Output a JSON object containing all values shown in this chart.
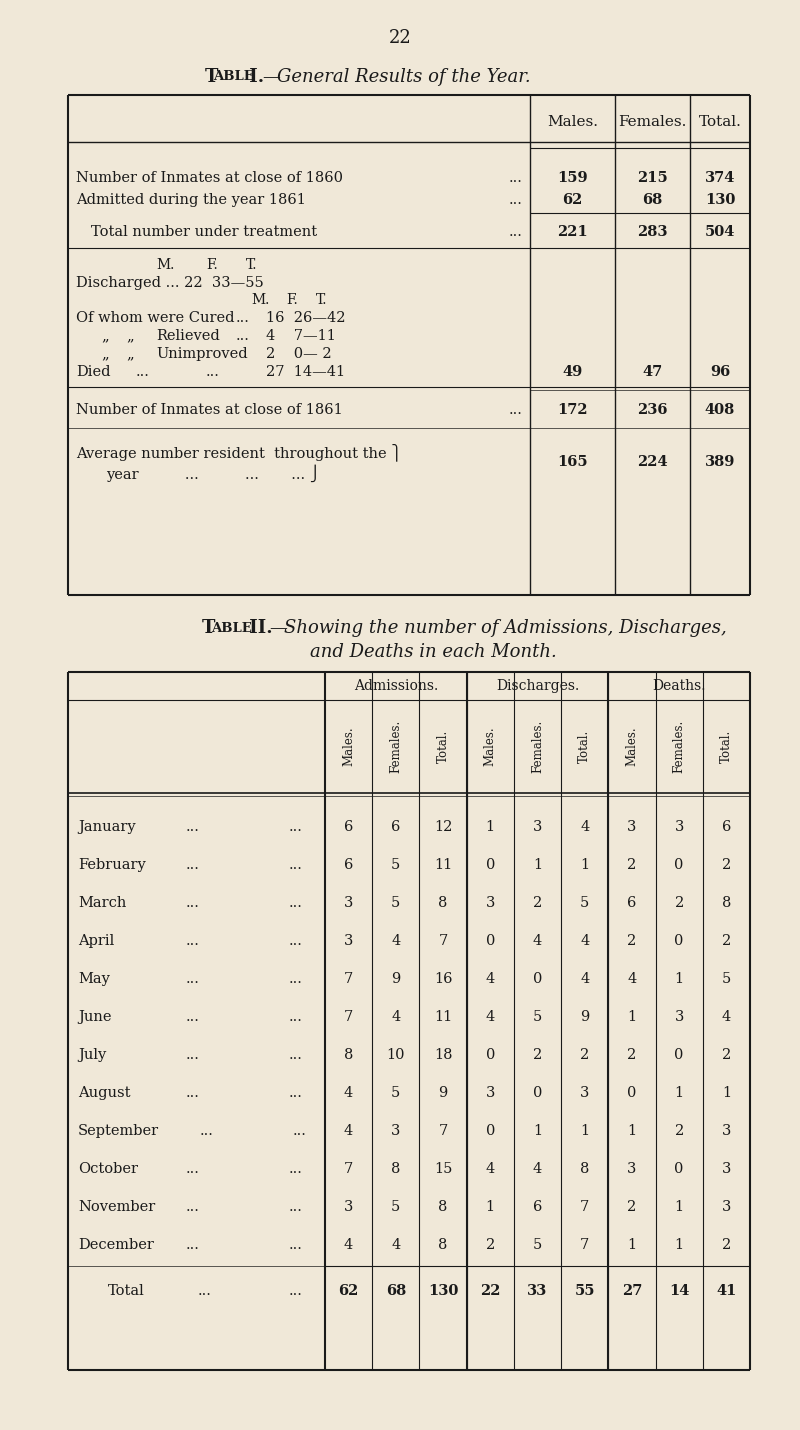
{
  "bg_color": "#f0e8d8",
  "page_number": "22",
  "table1_headers": [
    "Males.",
    "Females.",
    "Total."
  ],
  "table2_group_headers": [
    "Admissions.",
    "Discharges.",
    "Deaths."
  ],
  "table2_sub_headers": [
    "Males.",
    "Females.",
    "Total.",
    "Males.",
    "Females.",
    "Total.",
    "Males.",
    "Females.",
    "Total."
  ],
  "table2_months": [
    "January",
    "February",
    "March",
    "April",
    "May",
    "June",
    "July",
    "August",
    "September",
    "October",
    "November",
    "December"
  ],
  "table2_data": [
    [
      6,
      6,
      12,
      1,
      3,
      4,
      3,
      3,
      6
    ],
    [
      6,
      5,
      11,
      0,
      1,
      1,
      2,
      0,
      2
    ],
    [
      3,
      5,
      8,
      3,
      2,
      5,
      6,
      2,
      8
    ],
    [
      3,
      4,
      7,
      0,
      4,
      4,
      2,
      0,
      2
    ],
    [
      7,
      9,
      16,
      4,
      0,
      4,
      4,
      1,
      5
    ],
    [
      7,
      4,
      11,
      4,
      5,
      9,
      1,
      3,
      4
    ],
    [
      8,
      10,
      18,
      0,
      2,
      2,
      2,
      0,
      2
    ],
    [
      4,
      5,
      9,
      3,
      0,
      3,
      0,
      1,
      1
    ],
    [
      4,
      3,
      7,
      0,
      1,
      1,
      1,
      2,
      3
    ],
    [
      7,
      8,
      15,
      4,
      4,
      8,
      3,
      0,
      3
    ],
    [
      3,
      5,
      8,
      1,
      6,
      7,
      2,
      1,
      3
    ],
    [
      4,
      4,
      8,
      2,
      5,
      7,
      1,
      1,
      2
    ]
  ],
  "table2_totals": [
    62,
    68,
    130,
    22,
    33,
    55,
    27,
    14,
    41
  ]
}
